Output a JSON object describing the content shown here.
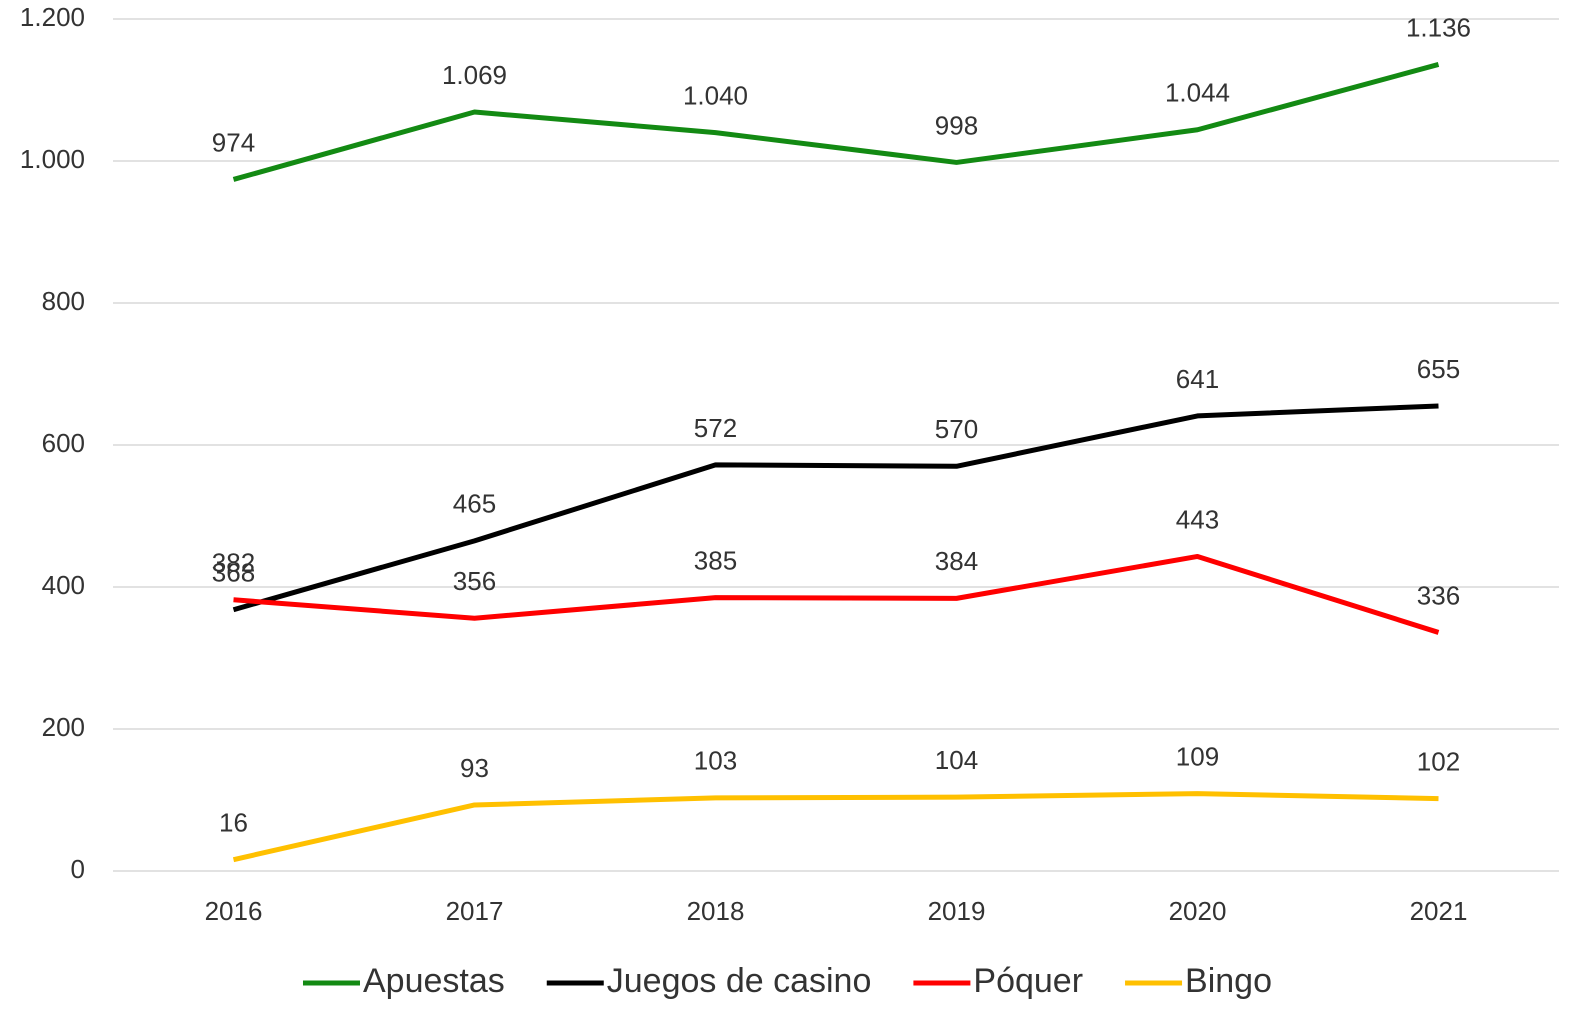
{
  "chart_data": {
    "type": "line",
    "categories": [
      "2016",
      "2017",
      "2018",
      "2019",
      "2020",
      "2021"
    ],
    "series": [
      {
        "name": "Apuestas",
        "color": "#138a13",
        "values": [
          974,
          1069,
          1040,
          998,
          1044,
          1136
        ],
        "value_labels": [
          "974",
          "1.069",
          "1.040",
          "998",
          "1.044",
          "1.136"
        ]
      },
      {
        "name": "Juegos de casino",
        "color": "#000000",
        "values": [
          368,
          465,
          572,
          570,
          641,
          655
        ]
      },
      {
        "name": "Póquer",
        "color": "#ff0000",
        "values": [
          382,
          356,
          385,
          384,
          443,
          336
        ]
      },
      {
        "name": "Bingo",
        "color": "#ffc000",
        "values": [
          16,
          93,
          103,
          104,
          109,
          102
        ]
      }
    ],
    "ylim": [
      0,
      1200
    ],
    "yticks": [
      0,
      200,
      400,
      600,
      800,
      {
        "value": 1000,
        "label": "1.000"
      },
      {
        "value": 1200,
        "label": "1.200"
      }
    ],
    "grid": true,
    "legend": "bottom"
  }
}
